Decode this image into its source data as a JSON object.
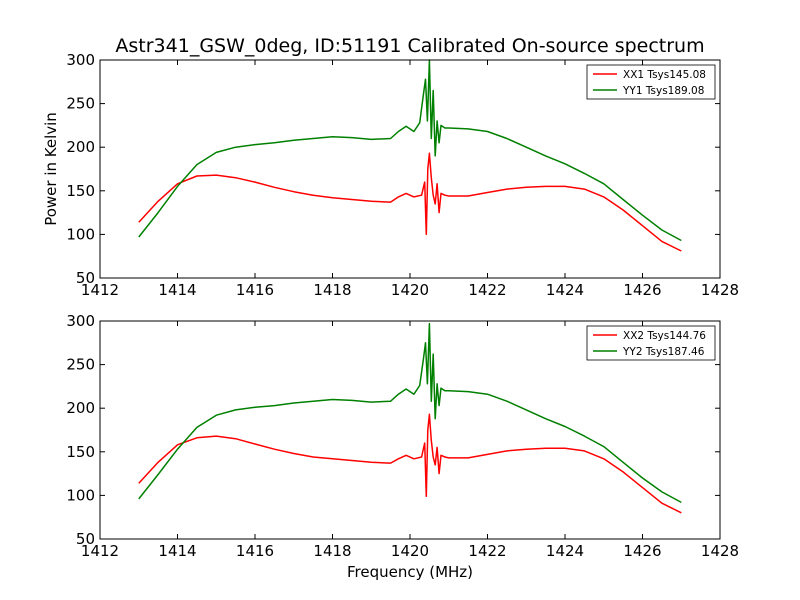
{
  "figure": {
    "title": "Astr341_GSW_0deg, ID:51191 Calibrated On-source spectrum",
    "xlabel": "Frequency (MHz)",
    "ylabel": "Power in Kelvin"
  },
  "chart_data": [
    {
      "type": "line",
      "title": "Astr341_GSW_0deg, ID:51191 Calibrated On-source spectrum",
      "xlabel": "",
      "ylabel": "Power in Kelvin",
      "xlim": [
        1412,
        1428
      ],
      "ylim": [
        50,
        300
      ],
      "xticks": [
        1412,
        1414,
        1416,
        1418,
        1420,
        1422,
        1424,
        1426,
        1428
      ],
      "yticks": [
        50,
        100,
        150,
        200,
        250,
        300
      ],
      "grid": false,
      "legend": "top-right",
      "series": [
        {
          "name": "XX1 Tsys145.08",
          "color": "#ff0000",
          "x": [
            1413.0,
            1413.5,
            1414.0,
            1414.5,
            1415.0,
            1415.5,
            1416.0,
            1416.5,
            1417.0,
            1417.5,
            1418.0,
            1418.5,
            1419.0,
            1419.5,
            1419.7,
            1419.9,
            1420.1,
            1420.3,
            1420.38,
            1420.42,
            1420.46,
            1420.5,
            1420.55,
            1420.6,
            1420.65,
            1420.7,
            1420.75,
            1420.8,
            1420.9,
            1421.0,
            1421.5,
            1422.0,
            1422.5,
            1423.0,
            1423.5,
            1424.0,
            1424.5,
            1425.0,
            1425.5,
            1426.0,
            1426.5,
            1427.0
          ],
          "y": [
            114,
            138,
            158,
            167,
            168,
            165,
            160,
            154,
            149,
            145,
            142,
            140,
            138,
            137,
            143,
            147,
            143,
            145,
            160,
            100,
            175,
            193,
            165,
            145,
            135,
            158,
            125,
            147,
            145,
            144,
            144,
            148,
            152,
            154,
            155,
            155,
            152,
            143,
            128,
            110,
            92,
            81
          ]
        },
        {
          "name": "YY1 Tsys189.08",
          "color": "#008000",
          "x": [
            1413.0,
            1413.5,
            1414.0,
            1414.5,
            1415.0,
            1415.5,
            1416.0,
            1416.5,
            1417.0,
            1417.5,
            1418.0,
            1418.5,
            1419.0,
            1419.5,
            1419.7,
            1419.9,
            1420.1,
            1420.25,
            1420.35,
            1420.4,
            1420.45,
            1420.5,
            1420.55,
            1420.6,
            1420.65,
            1420.7,
            1420.75,
            1420.8,
            1420.9,
            1421.0,
            1421.5,
            1422.0,
            1422.5,
            1423.0,
            1423.5,
            1424.0,
            1424.5,
            1425.0,
            1425.5,
            1426.0,
            1426.5,
            1427.0
          ],
          "y": [
            97,
            125,
            155,
            180,
            194,
            200,
            203,
            205,
            208,
            210,
            212,
            211,
            209,
            210,
            218,
            224,
            218,
            228,
            262,
            278,
            230,
            300,
            210,
            265,
            190,
            230,
            205,
            225,
            222,
            222,
            221,
            218,
            210,
            200,
            190,
            181,
            170,
            158,
            140,
            122,
            105,
            93
          ]
        }
      ]
    },
    {
      "type": "line",
      "title": "",
      "xlabel": "Frequency (MHz)",
      "ylabel": "",
      "xlim": [
        1412,
        1428
      ],
      "ylim": [
        50,
        300
      ],
      "xticks": [
        1412,
        1414,
        1416,
        1418,
        1420,
        1422,
        1424,
        1426,
        1428
      ],
      "yticks": [
        50,
        100,
        150,
        200,
        250,
        300
      ],
      "grid": false,
      "legend": "top-right",
      "series": [
        {
          "name": "XX2 Tsys144.76",
          "color": "#ff0000",
          "x": [
            1413.0,
            1413.5,
            1414.0,
            1414.5,
            1415.0,
            1415.5,
            1416.0,
            1416.5,
            1417.0,
            1417.5,
            1418.0,
            1418.5,
            1419.0,
            1419.5,
            1419.7,
            1419.9,
            1420.1,
            1420.3,
            1420.38,
            1420.42,
            1420.46,
            1420.5,
            1420.55,
            1420.6,
            1420.65,
            1420.7,
            1420.75,
            1420.8,
            1420.9,
            1421.0,
            1421.5,
            1422.0,
            1422.5,
            1423.0,
            1423.5,
            1424.0,
            1424.5,
            1425.0,
            1425.5,
            1426.0,
            1426.5,
            1427.0
          ],
          "y": [
            114,
            138,
            158,
            166,
            168,
            165,
            159,
            153,
            148,
            144,
            142,
            140,
            138,
            137,
            142,
            146,
            142,
            144,
            160,
            99,
            175,
            193,
            163,
            144,
            135,
            155,
            125,
            146,
            144,
            143,
            143,
            147,
            151,
            153,
            154,
            154,
            151,
            142,
            127,
            109,
            91,
            80
          ]
        },
        {
          "name": "YY2 Tsys187.46",
          "color": "#008000",
          "x": [
            1413.0,
            1413.5,
            1414.0,
            1414.5,
            1415.0,
            1415.5,
            1416.0,
            1416.5,
            1417.0,
            1417.5,
            1418.0,
            1418.5,
            1419.0,
            1419.5,
            1419.7,
            1419.9,
            1420.1,
            1420.25,
            1420.35,
            1420.4,
            1420.45,
            1420.5,
            1420.55,
            1420.6,
            1420.65,
            1420.7,
            1420.75,
            1420.8,
            1420.9,
            1421.0,
            1421.5,
            1422.0,
            1422.5,
            1423.0,
            1423.5,
            1424.0,
            1424.5,
            1425.0,
            1425.5,
            1426.0,
            1426.5,
            1427.0
          ],
          "y": [
            96,
            124,
            153,
            178,
            192,
            198,
            201,
            203,
            206,
            208,
            210,
            209,
            207,
            208,
            216,
            222,
            216,
            226,
            258,
            275,
            228,
            297,
            208,
            262,
            188,
            228,
            203,
            223,
            220,
            220,
            219,
            216,
            208,
            198,
            188,
            179,
            168,
            156,
            138,
            120,
            104,
            92
          ]
        }
      ]
    }
  ]
}
